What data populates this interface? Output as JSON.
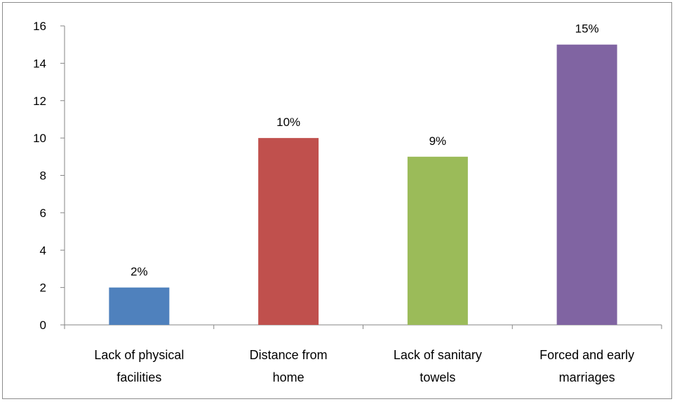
{
  "chart_data": {
    "type": "bar",
    "title": "",
    "xlabel": "",
    "ylabel": "",
    "ylim": [
      0,
      16
    ],
    "yticks": [
      0,
      2,
      4,
      6,
      8,
      10,
      12,
      14,
      16
    ],
    "categories": [
      [
        "Lack of physical",
        "facilities"
      ],
      [
        "Distance from",
        "home"
      ],
      [
        "Lack of sanitary",
        "towels"
      ],
      [
        "Forced and early",
        "marriages"
      ]
    ],
    "values": [
      2,
      10,
      9,
      15
    ],
    "data_labels": [
      "2%",
      "10%",
      "9%",
      "15%"
    ],
    "colors": [
      "#4f81bd",
      "#c0504d",
      "#9bbb59",
      "#8064a2"
    ],
    "grid": false,
    "legend": "none"
  }
}
